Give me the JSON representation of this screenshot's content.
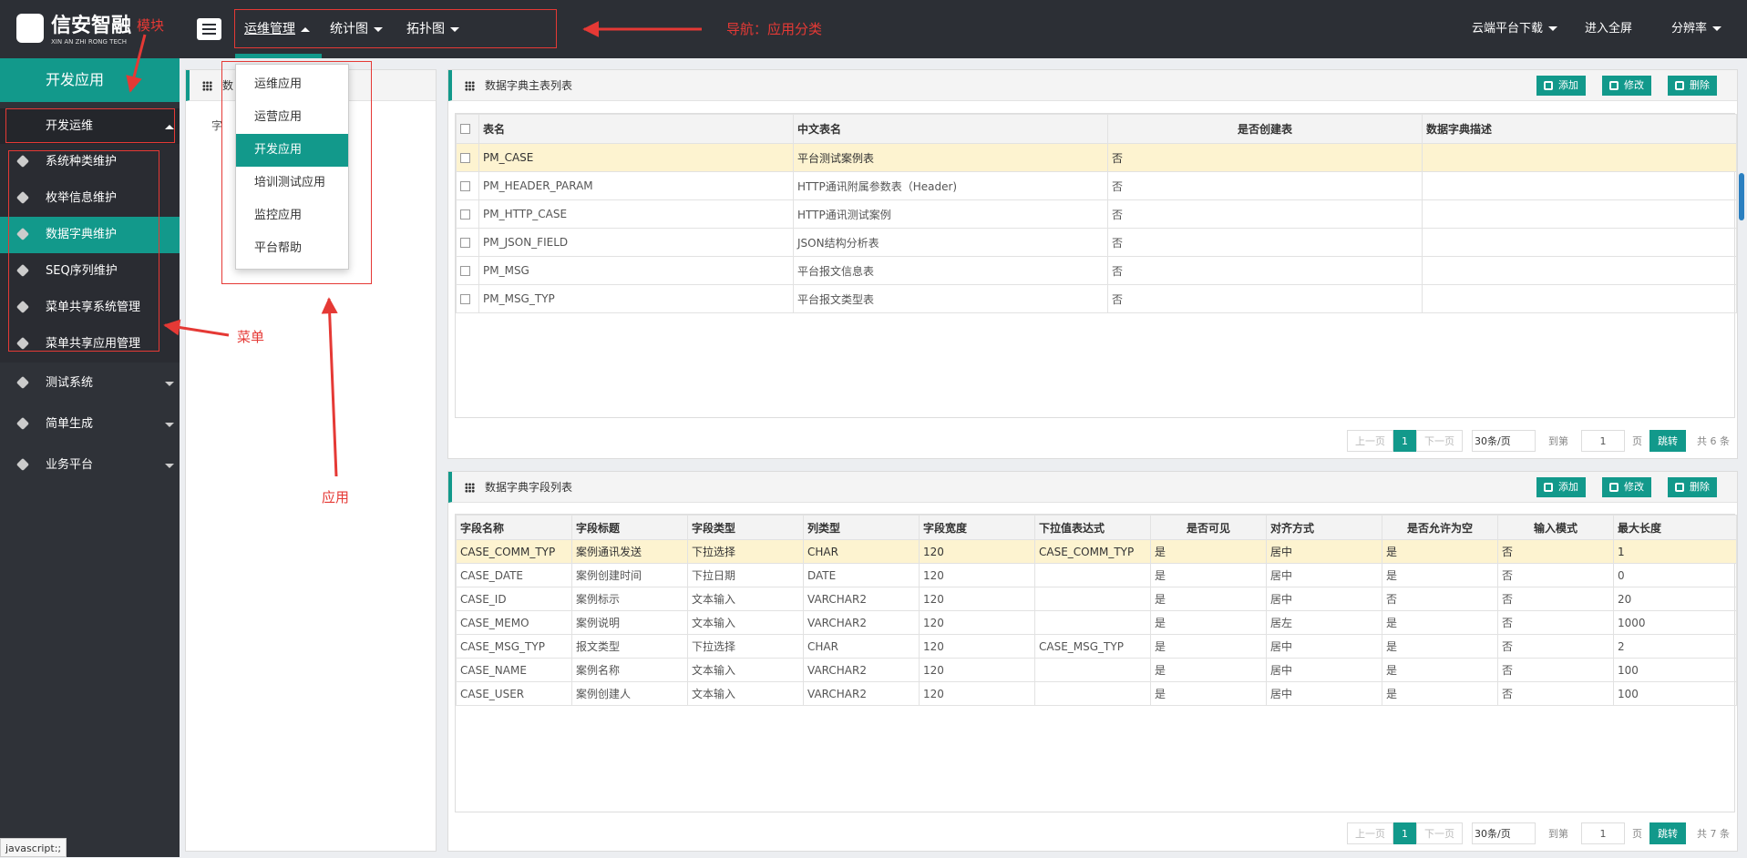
{
  "header": {
    "logo_title": "信安智融",
    "logo_subtitle": "XIN AN ZHI RONG TECH",
    "nav": [
      "运维管理",
      "统计图",
      "拓扑图"
    ],
    "right": [
      "云端平台下载",
      "进入全屏",
      "分辨率"
    ]
  },
  "annotations": {
    "module": "模块",
    "nav": "导航：应用分类",
    "menu": "菜单",
    "app": "应用"
  },
  "sidebar": {
    "module": "开发应用",
    "group": "开发运维",
    "items": [
      "系统种类维护",
      "枚举信息维护",
      "数据字典维护",
      "SEQ序列维护",
      "菜单共享系统管理",
      "菜单共享应用管理"
    ],
    "others": [
      "测试系统",
      "简单生成",
      "业务平台"
    ]
  },
  "dropdown": [
    "运维应用",
    "运营应用",
    "开发应用",
    "培训测试应用",
    "监控应用",
    "平台帮助"
  ],
  "tree": {
    "title": "数",
    "node": "字"
  },
  "table1": {
    "title": "数据字典主表列表",
    "buttons": [
      "添加",
      "修改",
      "删除"
    ],
    "columns": [
      "表名",
      "中文表名",
      "是否创建表",
      "数据字典描述"
    ],
    "rows": [
      [
        "PM_CASE",
        "平台测试案例表",
        "否",
        null
      ],
      [
        "PM_HEADER_PARAM",
        "HTTP通讯附属参数表（Header)",
        "否",
        null
      ],
      [
        "PM_HTTP_CASE",
        "HTTP通讯测试案例",
        "否",
        null
      ],
      [
        "PM_JSON_FIELD",
        "JSON结构分析表",
        "否",
        null
      ],
      [
        "PM_MSG",
        "平台报文信息表",
        "否",
        null
      ],
      [
        "PM_MSG_TYP",
        "平台报文类型表",
        "否",
        null
      ]
    ],
    "pager": {
      "prev": "上一页",
      "page": "1",
      "next": "下一页",
      "size": "30条/页",
      "goto": "到第",
      "input": "1",
      "unit": "页",
      "jump": "跳转",
      "total": "共 6 条"
    }
  },
  "table2": {
    "title": "数据字典字段列表",
    "buttons": [
      "添加",
      "修改",
      "删除"
    ],
    "columns": [
      "字段名称",
      "字段标题",
      "字段类型",
      "列类型",
      "字段宽度",
      "下拉值表达式",
      "是否可见",
      "对齐方式",
      "是否允许为空",
      "输入模式",
      "最大长度"
    ],
    "rows": [
      [
        "CASE_COMM_TYP",
        "案例通讯发送",
        "下拉选择",
        "CHAR",
        120,
        "CASE_COMM_TYP",
        "是",
        "居中",
        "是",
        "否",
        1
      ],
      [
        "CASE_DATE",
        "案例创建时间",
        "下拉日期",
        "DATE",
        120,
        null,
        "是",
        "居中",
        "是",
        "否",
        0
      ],
      [
        "CASE_ID",
        "案例标示",
        "文本输入",
        "VARCHAR2",
        120,
        null,
        "是",
        "居中",
        "否",
        "否",
        20
      ],
      [
        "CASE_MEMO",
        "案例说明",
        "文本输入",
        "VARCHAR2",
        120,
        null,
        "是",
        "居左",
        "是",
        "否",
        1000
      ],
      [
        "CASE_MSG_TYP",
        "报文类型",
        "下拉选择",
        "CHAR",
        120,
        "CASE_MSG_TYP",
        "是",
        "居中",
        "是",
        "否",
        2
      ],
      [
        "CASE_NAME",
        "案例名称",
        "文本输入",
        "VARCHAR2",
        120,
        null,
        "是",
        "居中",
        "是",
        "否",
        100
      ],
      [
        "CASE_USER",
        "案例创建人",
        "文本输入",
        "VARCHAR2",
        120,
        null,
        "是",
        "居中",
        "是",
        "否",
        100
      ]
    ],
    "pager": {
      "prev": "上一页",
      "page": "1",
      "next": "下一页",
      "size": "30条/页",
      "goto": "到第",
      "input": "1",
      "unit": "页",
      "jump": "跳转",
      "total": "共 7 条"
    }
  },
  "status": "javascript:;"
}
